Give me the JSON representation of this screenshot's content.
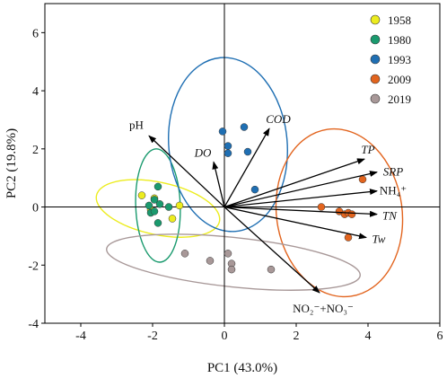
{
  "chart_data": {
    "type": "scatter",
    "title": "",
    "xlabel": "PC1 (43.0%)",
    "ylabel": "PC2 (19.8%)",
    "xlim": [
      -5,
      6
    ],
    "ylim": [
      -4,
      7
    ],
    "xticks": [
      -4,
      -2,
      0,
      2,
      4,
      6
    ],
    "yticks": [
      -4,
      -2,
      0,
      2,
      4,
      6
    ],
    "zero_lines": true,
    "grid": false,
    "legend_position": "top-right",
    "series": [
      {
        "name": "1958",
        "color": "#ecec1e",
        "points": [
          [
            -2.3,
            0.4
          ],
          [
            -1.95,
            0.3
          ],
          [
            -1.45,
            -0.4
          ],
          [
            -1.25,
            0.05
          ],
          [
            -2.05,
            -0.1
          ]
        ],
        "ellipse": {
          "center": [
            -1.85,
            -0.05
          ],
          "rx": 1.75,
          "ry": 0.9,
          "angle_deg": -12
        }
      },
      {
        "name": "1980",
        "color": "#1a9a6e",
        "points": [
          [
            -2.1,
            0.05
          ],
          [
            -1.95,
            0.25
          ],
          [
            -1.85,
            0.7
          ],
          [
            -1.8,
            0.1
          ],
          [
            -1.85,
            -0.55
          ],
          [
            -2.05,
            -0.2
          ],
          [
            -1.55,
            0.0
          ],
          [
            -1.95,
            -0.15
          ]
        ],
        "ellipse": {
          "center": [
            -1.85,
            0.05
          ],
          "rx": 0.62,
          "ry": 1.95,
          "angle_deg": 2
        }
      },
      {
        "name": "1993",
        "color": "#1f6fb3",
        "points": [
          [
            -0.05,
            2.6
          ],
          [
            0.1,
            2.1
          ],
          [
            0.1,
            1.85
          ],
          [
            0.55,
            2.75
          ],
          [
            0.65,
            1.9
          ],
          [
            0.85,
            0.6
          ]
        ],
        "ellipse": {
          "center": [
            0.1,
            2.15
          ],
          "rx": 1.65,
          "ry": 3.0,
          "angle_deg": 5
        }
      },
      {
        "name": "2009",
        "color": "#e2641e",
        "points": [
          [
            2.7,
            0.0
          ],
          [
            3.2,
            -0.15
          ],
          [
            3.35,
            -0.25
          ],
          [
            3.45,
            -0.2
          ],
          [
            3.55,
            -0.25
          ],
          [
            3.45,
            -1.05
          ],
          [
            3.85,
            0.95
          ]
        ],
        "ellipse": {
          "center": [
            3.2,
            -0.2
          ],
          "rx": 1.75,
          "ry": 2.9,
          "angle_deg": 8
        }
      },
      {
        "name": "2019",
        "color": "#a89898",
        "points": [
          [
            -1.1,
            -1.6
          ],
          [
            -0.4,
            -1.85
          ],
          [
            0.1,
            -1.6
          ],
          [
            0.2,
            -1.95
          ],
          [
            0.2,
            -2.15
          ],
          [
            1.3,
            -2.15
          ]
        ],
        "ellipse": {
          "center": [
            0.25,
            -1.9
          ],
          "rx": 3.55,
          "ry": 0.85,
          "angle_deg": -6
        }
      }
    ],
    "loadings": [
      {
        "label": "pH",
        "x": -2.1,
        "y": 2.45
      },
      {
        "label": "DO",
        "x": -0.3,
        "y": 1.55
      },
      {
        "label": "COD",
        "x": 1.25,
        "y": 2.7
      },
      {
        "label": "TP",
        "x": 3.9,
        "y": 1.65
      },
      {
        "label": "SRP",
        "x": 4.25,
        "y": 1.2
      },
      {
        "label": "NH₄⁺",
        "x": 4.25,
        "y": 0.55
      },
      {
        "label": "TN",
        "x": 4.25,
        "y": -0.25
      },
      {
        "label": "Tw",
        "x": 3.95,
        "y": -1.05
      },
      {
        "label": "NO₂⁻+NO₃⁻",
        "x": 2.65,
        "y": -2.95
      }
    ]
  }
}
